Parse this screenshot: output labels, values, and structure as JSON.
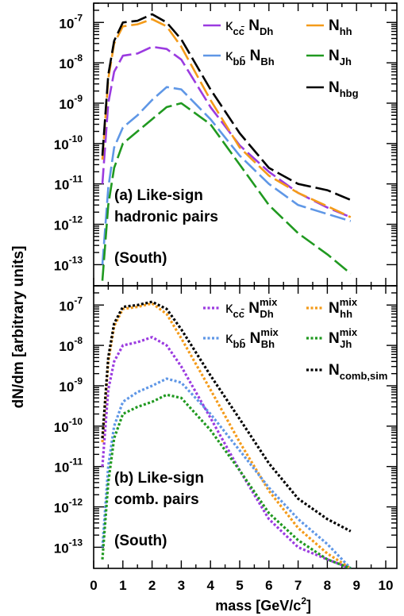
{
  "y_axis_label": "dN/dm [arbitrary units]",
  "x_axis_label": "mass [GeV/c",
  "x_axis_label_exponent": "2",
  "x_axis_label_close": "]",
  "x_ticks": [
    "0",
    "1",
    "2",
    "3",
    "4",
    "5",
    "6",
    "7",
    "8",
    "9",
    "10"
  ],
  "colors": {
    "purple": "#9b3be0",
    "orange": "#f49b1a",
    "lightblue": "#5f97e6",
    "green": "#209920",
    "black": "#000000"
  },
  "chart_data": [
    {
      "type": "line",
      "panel": "top",
      "y_scale": "log",
      "xlim": [
        0,
        10
      ],
      "ylim": [
        3e-14,
        3e-07
      ],
      "y_ticks": [
        {
          "mant": "10",
          "exp": "-7"
        },
        {
          "mant": "10",
          "exp": "-8"
        },
        {
          "mant": "10",
          "exp": "-9"
        },
        {
          "mant": "10",
          "exp": "-10"
        },
        {
          "mant": "10",
          "exp": "-11"
        },
        {
          "mant": "10",
          "exp": "-12"
        },
        {
          "mant": "10",
          "exp": "-13"
        }
      ],
      "annotation_lines": [
        "(a) Like-sign",
        "hadronic pairs",
        "",
        "(South)"
      ],
      "x": [
        0.3,
        0.5,
        0.7,
        1.0,
        1.5,
        2.0,
        2.5,
        3.0,
        4.0,
        5.0,
        6.0,
        7.0,
        8.0,
        8.8
      ],
      "series": [
        {
          "legend_base": "κ",
          "legend_sub": "cc̄",
          "legend_rest": "N",
          "legend_rest_sub": "Dh",
          "color": "purple",
          "dash": "long",
          "values": [
            1e-11,
            1e-09,
            6e-09,
            1.5e-08,
            1.7e-08,
            2.5e-08,
            2.2e-08,
            1.2e-08,
            8e-10,
            9e-11,
            2e-11,
            6e-12,
            2.6e-12,
            1.5e-12
          ]
        },
        {
          "legend_base": "N",
          "legend_sub": "hh",
          "color": "orange",
          "dash": "long",
          "values": [
            4e-11,
            4e-09,
            3e-08,
            8e-08,
            9e-08,
            1.2e-07,
            8e-08,
            2.5e-08,
            1.2e-09,
            8e-11,
            1.6e-11,
            6e-12,
            2.8e-12,
            1.5e-12
          ]
        },
        {
          "legend_base": "κ",
          "legend_sub": "bb̄",
          "legend_rest": "N",
          "legend_rest_sub": "Bh",
          "color": "lightblue",
          "dash": "long",
          "values": [
            1e-13,
            8e-12,
            8e-11,
            2.5e-10,
            5e-10,
            1.2e-09,
            2.5e-09,
            2.2e-09,
            4e-10,
            5e-11,
            1e-11,
            3e-12,
            1.8e-12,
            1.2e-12
          ]
        },
        {
          "legend_base": "N",
          "legend_sub": "Jh",
          "color": "green",
          "dash": "long",
          "values": [
            4e-14,
            3e-12,
            2.5e-11,
            1e-10,
            2e-10,
            4e-10,
            8e-10,
            1e-09,
            3e-10,
            3e-11,
            3e-12,
            6e-13,
            1.8e-13,
            6e-14
          ]
        },
        {
          "legend_base": "N",
          "legend_sub": "hbg",
          "color": "black",
          "dash": "long",
          "values": [
            5e-11,
            5e-09,
            3.5e-08,
            1e-07,
            1.1e-07,
            1.6e-07,
            1e-07,
            3.8e-08,
            2.2e-09,
            1.8e-10,
            2.5e-11,
            1e-11,
            7e-12,
            4e-12
          ]
        }
      ]
    },
    {
      "type": "line",
      "panel": "bottom",
      "y_scale": "log",
      "xlim": [
        0,
        10
      ],
      "ylim": [
        3e-14,
        3e-07
      ],
      "y_ticks": [
        {
          "mant": "10",
          "exp": "-7"
        },
        {
          "mant": "10",
          "exp": "-8"
        },
        {
          "mant": "10",
          "exp": "-9"
        },
        {
          "mant": "10",
          "exp": "-10"
        },
        {
          "mant": "10",
          "exp": "-11"
        },
        {
          "mant": "10",
          "exp": "-12"
        },
        {
          "mant": "10",
          "exp": "-13"
        }
      ],
      "annotation_lines": [
        "(b) Like-sign",
        "comb. pairs",
        "",
        "(South)"
      ],
      "x": [
        0.3,
        0.5,
        0.7,
        1.0,
        1.5,
        2.0,
        2.5,
        3.0,
        4.0,
        5.0,
        6.0,
        7.0,
        8.0,
        8.8
      ],
      "series": [
        {
          "legend_base": "κ",
          "legend_sub": "cc̄",
          "legend_rest": "N",
          "legend_rest_sub": "Dh",
          "legend_rest_sup": "mix",
          "color": "purple",
          "dash": "dot",
          "values": [
            1e-11,
            8e-10,
            4e-09,
            1e-08,
            1.2e-08,
            1.6e-08,
            1e-08,
            3e-09,
            1.6e-10,
            8e-12,
            5e-13,
            1e-13,
            5e-14,
            3e-14
          ]
        },
        {
          "legend_base": "N",
          "legend_sub": "hh",
          "legend_sup": "mix",
          "color": "orange",
          "dash": "dot",
          "values": [
            4e-11,
            4e-09,
            3e-08,
            8e-08,
            9e-08,
            1.1e-07,
            6e-08,
            1.5e-08,
            8e-10,
            4e-11,
            2.5e-12,
            3e-13,
            7e-14,
            3e-14
          ]
        },
        {
          "legend_base": "κ",
          "legend_sub": "bb̄",
          "legend_rest": "N",
          "legend_rest_sub": "Bh",
          "legend_rest_sup": "mix",
          "color": "lightblue",
          "dash": "dot",
          "values": [
            1e-13,
            1e-11,
            1e-10,
            4e-10,
            7e-10,
            1e-09,
            1.5e-09,
            1.2e-09,
            2e-10,
            2.5e-11,
            3e-12,
            5e-13,
            1.2e-13,
            3e-14
          ]
        },
        {
          "legend_base": "N",
          "legend_sub": "Jh",
          "legend_sup": "mix",
          "color": "green",
          "dash": "dot",
          "values": [
            5e-14,
            4e-12,
            5e-11,
            2e-10,
            3e-10,
            4e-10,
            6e-10,
            5e-10,
            8e-11,
            8e-12,
            7e-13,
            1.5e-13,
            5e-14,
            3e-14
          ]
        },
        {
          "legend_base": "N",
          "legend_sub": "comb,sim",
          "color": "black",
          "dash": "dot",
          "values": [
            5e-11,
            5e-09,
            3.5e-08,
            9e-08,
            1e-07,
            1.2e-07,
            8e-08,
            2.5e-08,
            1.8e-09,
            1.5e-10,
            1.2e-11,
            1.6e-12,
            5e-13,
            2.5e-13
          ]
        }
      ]
    }
  ]
}
